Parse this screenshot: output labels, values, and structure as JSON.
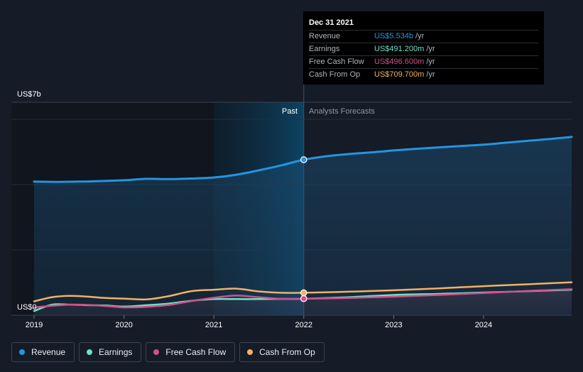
{
  "chart_data": {
    "type": "line",
    "title": "",
    "ylabel": "",
    "xlabel": "",
    "ylim": [
      0,
      7
    ],
    "y_unit_labels": {
      "top": "US$7b",
      "bottom": "US$0"
    },
    "xlim": [
      2019,
      2024.98
    ],
    "xticks": [
      "2019",
      "2020",
      "2021",
      "2022",
      "2023",
      "2024"
    ],
    "past_label": "Past",
    "forecast_label": "Analysts Forecasts",
    "past_highlight_start": 2021.0,
    "divider_x": 2022.0,
    "series": [
      {
        "name": "Revenue",
        "color": "#2494e1",
        "fill": true,
        "points": [
          [
            2019.0,
            4.74
          ],
          [
            2019.25,
            4.73
          ],
          [
            2019.5,
            4.74
          ],
          [
            2019.75,
            4.76
          ],
          [
            2020.0,
            4.79
          ],
          [
            2020.25,
            4.84
          ],
          [
            2020.5,
            4.83
          ],
          [
            2020.75,
            4.85
          ],
          [
            2021.0,
            4.89
          ],
          [
            2021.25,
            4.99
          ],
          [
            2021.5,
            5.15
          ],
          [
            2021.75,
            5.33
          ],
          [
            2022.0,
            5.534
          ],
          [
            2022.25,
            5.66
          ],
          [
            2022.5,
            5.74
          ],
          [
            2022.75,
            5.8
          ],
          [
            2023.0,
            5.87
          ],
          [
            2023.25,
            5.93
          ],
          [
            2023.5,
            5.98
          ],
          [
            2023.75,
            6.03
          ],
          [
            2024.0,
            6.08
          ],
          [
            2024.25,
            6.15
          ],
          [
            2024.5,
            6.22
          ],
          [
            2024.75,
            6.29
          ],
          [
            2024.98,
            6.36
          ]
        ]
      },
      {
        "name": "Earnings",
        "color": "#6de2c4",
        "fill": false,
        "points": [
          [
            2019.0,
            0.05
          ],
          [
            2019.2,
            0.28
          ],
          [
            2019.4,
            0.28
          ],
          [
            2019.6,
            0.26
          ],
          [
            2019.8,
            0.25
          ],
          [
            2020.0,
            0.21
          ],
          [
            2020.25,
            0.26
          ],
          [
            2020.5,
            0.32
          ],
          [
            2020.75,
            0.42
          ],
          [
            2021.0,
            0.48
          ],
          [
            2021.25,
            0.48
          ],
          [
            2021.5,
            0.48
          ],
          [
            2021.75,
            0.49
          ],
          [
            2022.0,
            0.4912
          ],
          [
            2022.5,
            0.55
          ],
          [
            2023.0,
            0.63
          ],
          [
            2023.5,
            0.67
          ],
          [
            2024.0,
            0.72
          ],
          [
            2024.5,
            0.77
          ],
          [
            2024.98,
            0.82
          ]
        ]
      },
      {
        "name": "Free Cash Flow",
        "color": "#d1508a",
        "fill": false,
        "points": [
          [
            2019.0,
            0.18
          ],
          [
            2019.2,
            0.24
          ],
          [
            2019.4,
            0.28
          ],
          [
            2019.6,
            0.27
          ],
          [
            2019.8,
            0.23
          ],
          [
            2020.0,
            0.18
          ],
          [
            2020.25,
            0.2
          ],
          [
            2020.5,
            0.27
          ],
          [
            2020.75,
            0.41
          ],
          [
            2021.0,
            0.53
          ],
          [
            2021.25,
            0.61
          ],
          [
            2021.5,
            0.55
          ],
          [
            2021.75,
            0.49
          ],
          [
            2022.0,
            0.4966
          ],
          [
            2022.5,
            0.52
          ],
          [
            2023.0,
            0.57
          ],
          [
            2023.5,
            0.63
          ],
          [
            2024.0,
            0.7
          ],
          [
            2024.5,
            0.78
          ],
          [
            2024.98,
            0.84
          ]
        ]
      },
      {
        "name": "Cash From Op",
        "color": "#f2b167",
        "fill": false,
        "points": [
          [
            2019.0,
            0.4
          ],
          [
            2019.2,
            0.55
          ],
          [
            2019.4,
            0.6
          ],
          [
            2019.6,
            0.57
          ],
          [
            2019.8,
            0.52
          ],
          [
            2020.0,
            0.5
          ],
          [
            2020.25,
            0.47
          ],
          [
            2020.5,
            0.59
          ],
          [
            2020.75,
            0.77
          ],
          [
            2021.0,
            0.82
          ],
          [
            2021.25,
            0.86
          ],
          [
            2021.5,
            0.76
          ],
          [
            2021.75,
            0.71
          ],
          [
            2022.0,
            0.7097
          ],
          [
            2022.5,
            0.75
          ],
          [
            2023.0,
            0.8
          ],
          [
            2023.5,
            0.87
          ],
          [
            2024.0,
            0.95
          ],
          [
            2024.5,
            1.02
          ],
          [
            2024.98,
            1.09
          ]
        ]
      }
    ],
    "highlight_x": 2022.0
  },
  "tooltip": {
    "date": "Dec 31 2021",
    "unit": "/yr",
    "rows": [
      {
        "label": "Revenue",
        "value": "US$5.534b",
        "color": "#2494e1"
      },
      {
        "label": "Earnings",
        "value": "US$491.200m",
        "color": "#6de2c4"
      },
      {
        "label": "Free Cash Flow",
        "value": "US$496.600m",
        "color": "#d1508a"
      },
      {
        "label": "Cash From Op",
        "value": "US$709.700m",
        "color": "#f2b167"
      }
    ]
  },
  "legend": [
    {
      "label": "Revenue",
      "color": "#2494e1"
    },
    {
      "label": "Earnings",
      "color": "#6de2c4"
    },
    {
      "label": "Free Cash Flow",
      "color": "#d1508a"
    },
    {
      "label": "Cash From Op",
      "color": "#f2b167"
    }
  ]
}
